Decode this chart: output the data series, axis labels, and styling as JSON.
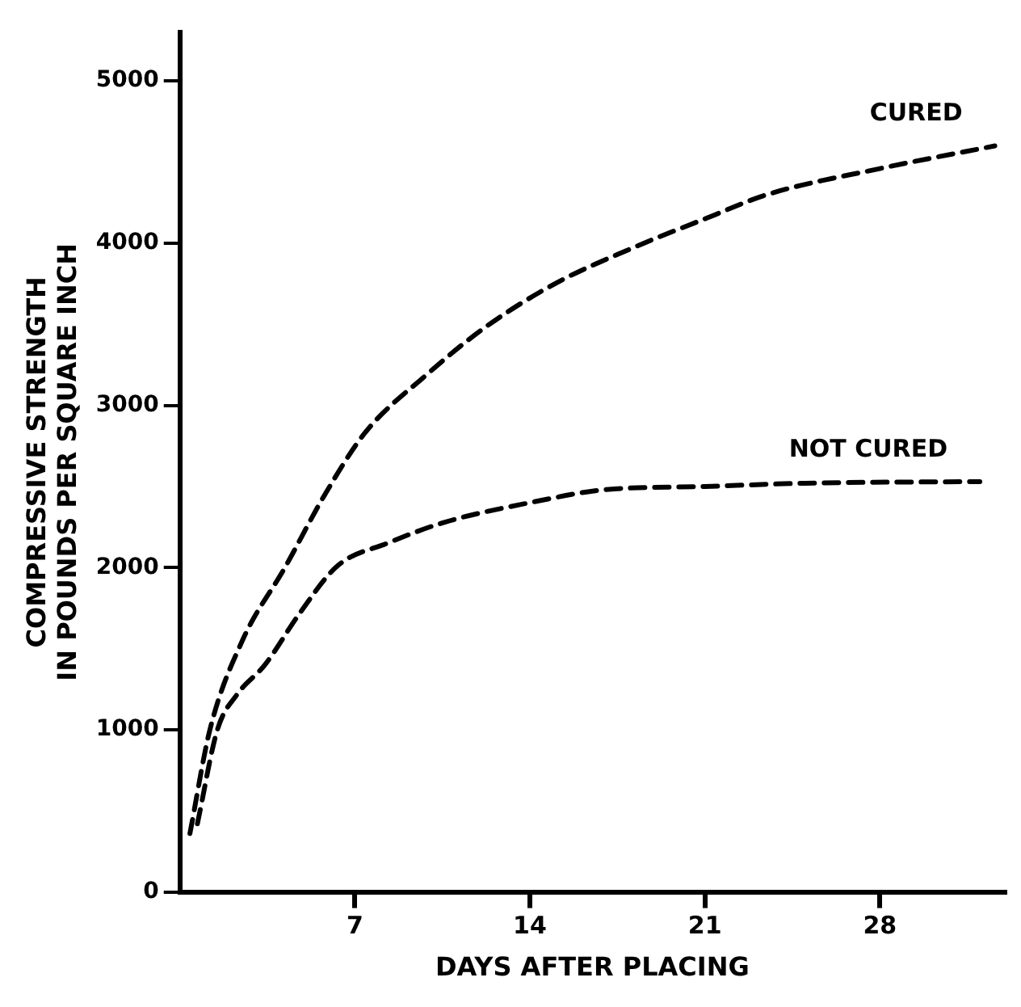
{
  "chart_data": {
    "type": "line",
    "xlabel": "DAYS AFTER PLACING",
    "ylabel": "COMPRESSIVE STRENGTH\nIN POUNDS PER SQUARE INCH",
    "xlim": [
      0,
      33
    ],
    "xticks": [
      7,
      14,
      21,
      28
    ],
    "ylim": [
      0,
      5300
    ],
    "yticks": [
      0,
      1000,
      2000,
      3000,
      4000,
      5000
    ],
    "grid": false,
    "legend": false,
    "marker": "none",
    "line_style": "dashed",
    "series": [
      {
        "name": "CURED",
        "color": "#000000",
        "x": [
          0.4,
          1.2,
          2.5,
          4.2,
          5.8,
          7.4,
          9.8,
          12.2,
          15,
          18.1,
          21,
          23.5,
          28,
          32.6
        ],
        "values": [
          360,
          1000,
          1550,
          2000,
          2450,
          2830,
          3180,
          3480,
          3750,
          3970,
          4150,
          4300,
          4460,
          4600
        ]
      },
      {
        "name": "NOT CURED",
        "color": "#000000",
        "x": [
          0.7,
          1.5,
          2.3,
          3.4,
          4.8,
          6.3,
          8.3,
          10.6,
          14,
          17,
          21,
          25,
          32
        ],
        "values": [
          420,
          1000,
          1220,
          1400,
          1720,
          2010,
          2150,
          2280,
          2400,
          2480,
          2500,
          2520,
          2530
        ]
      }
    ]
  }
}
